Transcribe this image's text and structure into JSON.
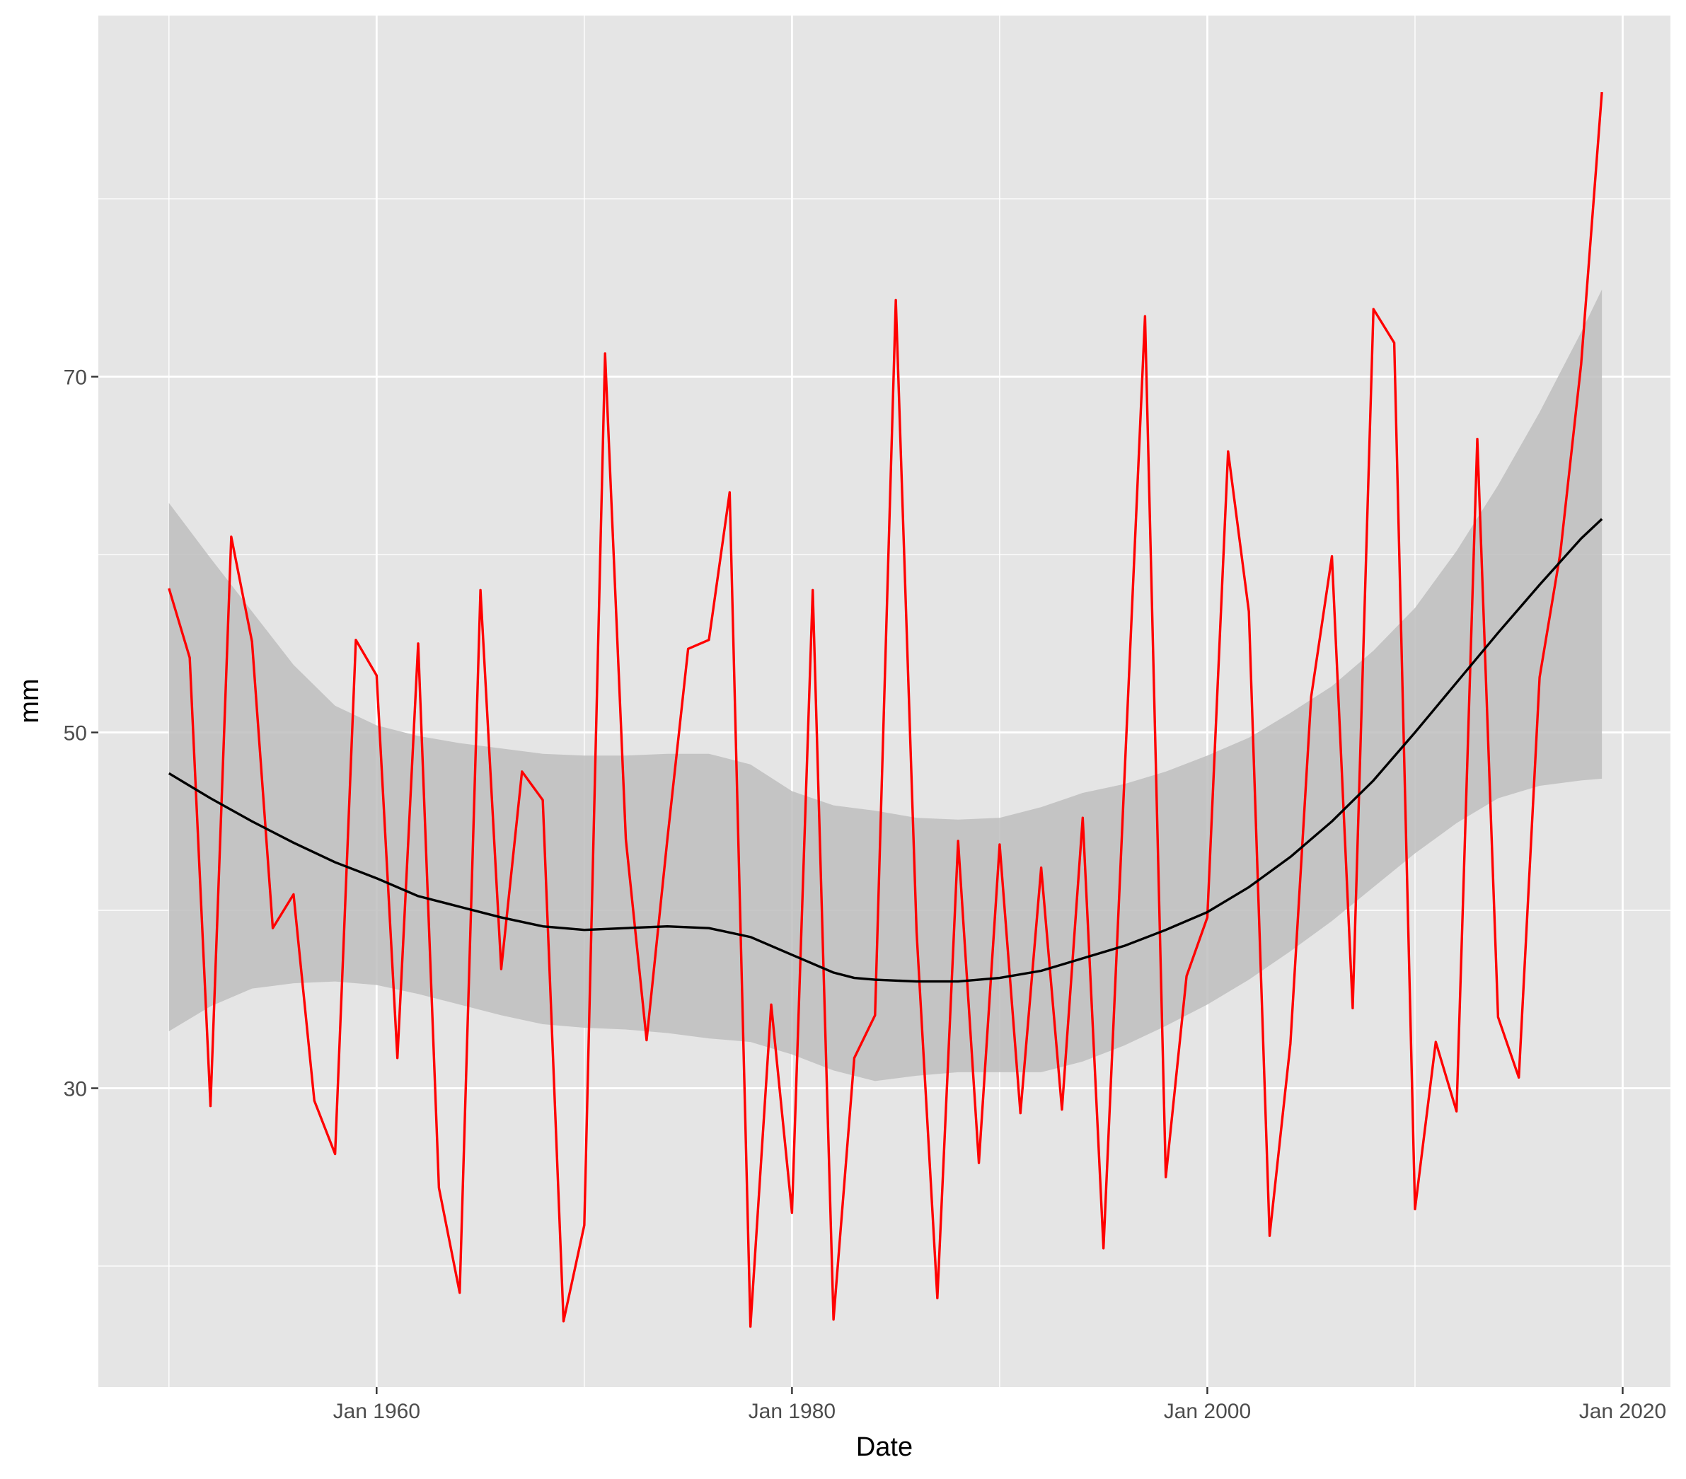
{
  "chart_data": {
    "type": "line",
    "xlabel": "Date",
    "ylabel": "mm",
    "x_ticks": [
      {
        "year": 1960,
        "label": "Jan 1960"
      },
      {
        "year": 1980,
        "label": "Jan 1980"
      },
      {
        "year": 2000,
        "label": "Jan 2000"
      },
      {
        "year": 2020,
        "label": "Jan 2020"
      }
    ],
    "y_ticks": [
      {
        "value": 30,
        "label": "30"
      },
      {
        "value": 50,
        "label": "50"
      },
      {
        "value": 70,
        "label": "70"
      }
    ],
    "xlim": [
      1946.6,
      2022.3
    ],
    "ylim": [
      13.2,
      90.3
    ],
    "grid": true,
    "background_color": "#e5e5e5",
    "series": [
      {
        "kind": "observed",
        "color": "#ff0000",
        "x": [
          1950,
          1951,
          1952,
          1953,
          1954,
          1955,
          1956,
          1957,
          1958,
          1959,
          1960,
          1961,
          1962,
          1963,
          1964,
          1965,
          1966,
          1967,
          1968,
          1969,
          1970,
          1971,
          1972,
          1973,
          1974,
          1975,
          1976,
          1977,
          1978,
          1979,
          1980,
          1981,
          1982,
          1983,
          1984,
          1985,
          1986,
          1987,
          1988,
          1989,
          1990,
          1991,
          1992,
          1993,
          1994,
          1995,
          1996,
          1997,
          1998,
          1999,
          2000,
          2001,
          2002,
          2003,
          2004,
          2005,
          2006,
          2007,
          2008,
          2009,
          2010,
          2011,
          2012,
          2013,
          2014,
          2015,
          2016,
          2017,
          2018,
          2019
        ],
        "y": [
          58.1,
          54.2,
          29.0,
          61.0,
          55.1,
          39.0,
          40.9,
          29.3,
          26.3,
          55.2,
          53.2,
          31.7,
          55.0,
          24.4,
          18.5,
          58.0,
          36.7,
          47.8,
          46.2,
          16.9,
          22.3,
          71.3,
          44.0,
          32.7,
          44.0,
          54.7,
          55.2,
          63.5,
          16.6,
          34.7,
          23.0,
          58.0,
          17.0,
          31.7,
          34.1,
          74.3,
          38.8,
          18.2,
          43.9,
          25.8,
          43.7,
          28.6,
          42.4,
          28.8,
          45.2,
          21.0,
          47.2,
          73.4,
          25.0,
          36.3,
          39.6,
          65.8,
          56.8,
          21.7,
          32.5,
          52.0,
          59.9,
          34.5,
          73.8,
          71.9,
          23.2,
          32.6,
          28.7,
          66.5,
          34.0,
          30.6,
          53.1,
          60.1,
          70.7,
          86.0
        ]
      },
      {
        "kind": "smooth",
        "color": "#000000",
        "x": [
          1950,
          1952,
          1954,
          1956,
          1958,
          1960,
          1962,
          1964,
          1966,
          1968,
          1970,
          1972,
          1974,
          1976,
          1978,
          1980,
          1982,
          1983,
          1984,
          1986,
          1988,
          1990,
          1992,
          1994,
          1996,
          1998,
          2000,
          2002,
          2004,
          2006,
          2008,
          2010,
          2012,
          2014,
          2016,
          2018,
          2019
        ],
        "y": [
          47.7,
          46.3,
          45.0,
          43.8,
          42.7,
          41.8,
          40.8,
          40.2,
          39.6,
          39.1,
          38.9,
          39.0,
          39.1,
          39.0,
          38.5,
          37.5,
          36.5,
          36.2,
          36.1,
          36.0,
          36.0,
          36.2,
          36.6,
          37.3,
          38.0,
          38.9,
          39.9,
          41.3,
          43.0,
          45.0,
          47.3,
          50.0,
          52.8,
          55.6,
          58.3,
          60.9,
          62.0
        ]
      },
      {
        "kind": "ci_band",
        "color": "#bebebe",
        "x": [
          1950,
          1952,
          1954,
          1956,
          1958,
          1960,
          1962,
          1964,
          1966,
          1968,
          1970,
          1972,
          1974,
          1976,
          1978,
          1980,
          1982,
          1984,
          1986,
          1988,
          1990,
          1992,
          1994,
          1996,
          1998,
          2000,
          2002,
          2004,
          2006,
          2008,
          2010,
          2012,
          2014,
          2016,
          2018,
          2019
        ],
        "lower": [
          33.2,
          34.6,
          35.6,
          35.9,
          36.0,
          35.8,
          35.3,
          34.7,
          34.1,
          33.6,
          33.4,
          33.3,
          33.1,
          32.8,
          32.6,
          31.9,
          31.0,
          30.4,
          30.7,
          30.9,
          30.9,
          30.9,
          31.5,
          32.4,
          33.5,
          34.7,
          36.1,
          37.7,
          39.4,
          41.3,
          43.2,
          44.9,
          46.3,
          47.0,
          47.3,
          47.4
        ],
        "upper": [
          62.9,
          59.8,
          56.8,
          53.8,
          51.5,
          50.4,
          49.8,
          49.4,
          49.1,
          48.8,
          48.7,
          48.7,
          48.8,
          48.8,
          48.2,
          46.7,
          45.9,
          45.6,
          45.2,
          45.1,
          45.2,
          45.8,
          46.6,
          47.1,
          47.8,
          48.7,
          49.7,
          51.1,
          52.6,
          54.6,
          57.0,
          60.2,
          63.9,
          68.0,
          72.5,
          74.9
        ]
      }
    ]
  }
}
